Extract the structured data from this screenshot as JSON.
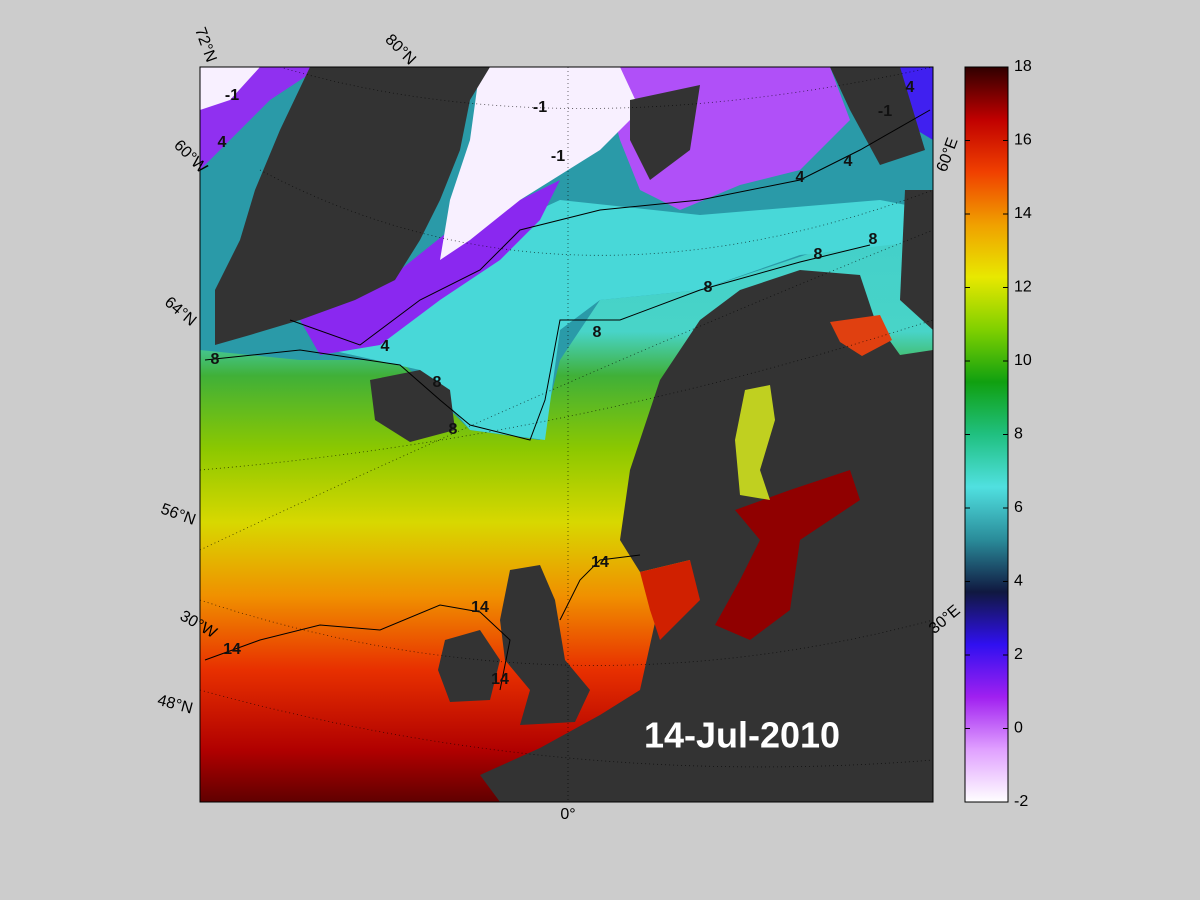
{
  "map": {
    "date": "14-Jul-2010",
    "graticule_labels": [
      "72°N",
      "80°N",
      "60°W",
      "64°N",
      "56°N",
      "30°W",
      "48°N",
      "0°",
      "30°E",
      "60°E"
    ],
    "contour_levels": [
      -1,
      4,
      8,
      14
    ]
  },
  "colorbar": {
    "lim": [
      -2,
      18
    ],
    "ticks": [
      -2,
      0,
      2,
      4,
      6,
      8,
      10,
      12,
      14,
      16,
      18
    ],
    "colormap": [
      "#ffffff",
      "#e0a0ff",
      "#a020f0",
      "#3010f0",
      "#101840",
      "#2a8c9a",
      "#50e0e0",
      "#20c080",
      "#10a010",
      "#80d000",
      "#e8e800",
      "#f0a000",
      "#f04000",
      "#c00000",
      "#300000"
    ]
  }
}
